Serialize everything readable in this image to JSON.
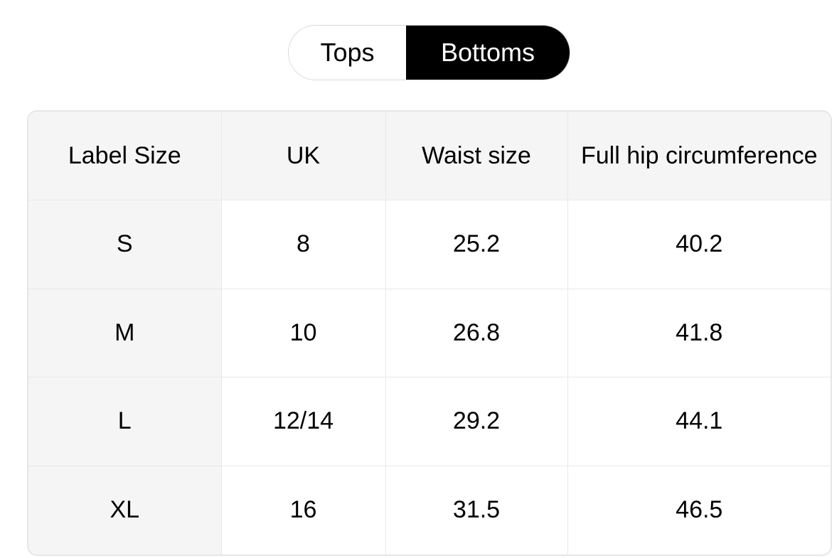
{
  "tabs": [
    {
      "label": "Tops",
      "active": false
    },
    {
      "label": "Bottoms",
      "active": true
    }
  ],
  "table": {
    "headers": [
      "Label Size",
      "UK",
      "Waist size",
      "Full hip circumference"
    ],
    "rows": [
      [
        "S",
        "8",
        "25.2",
        "40.2"
      ],
      [
        "M",
        "10",
        "26.8",
        "41.8"
      ],
      [
        "L",
        "12/14",
        "29.2",
        "44.1"
      ],
      [
        "XL",
        "16",
        "31.5",
        "46.5"
      ]
    ]
  },
  "colors": {
    "active_tab_bg": "#000000",
    "header_bg": "#f5f5f5",
    "border": "#e8e8e8"
  }
}
